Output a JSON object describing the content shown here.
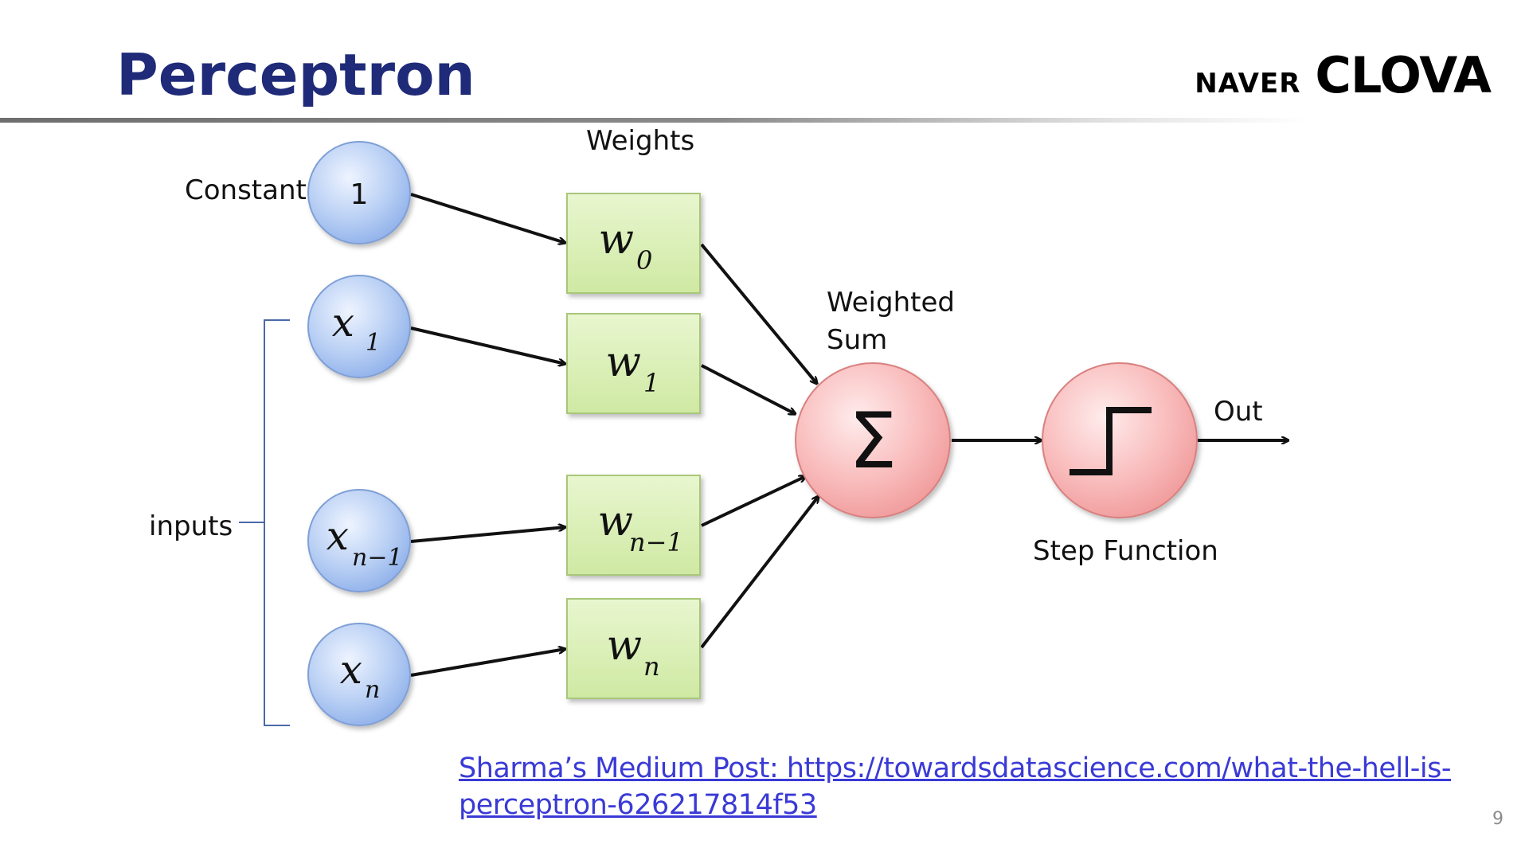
{
  "slide": {
    "title": "Perceptron",
    "brand": {
      "naver": "NAVER",
      "clova": "CLOVA"
    },
    "page_number": "9"
  },
  "diagram": {
    "weights_heading": "Weights",
    "constant_label": "Constant",
    "inputs_label": "inputs",
    "weighted_sum_label": [
      "Weighted",
      "Sum"
    ],
    "step_function_label": "Step Function",
    "out_label": "Out",
    "sum_symbol": "Σ",
    "input_nodes": [
      {
        "main": "1",
        "sub": ""
      },
      {
        "main": "x",
        "sub": "1"
      },
      {
        "main": "x",
        "sub": "n−1"
      },
      {
        "main": "x",
        "sub": "n"
      }
    ],
    "weight_boxes": [
      {
        "main": "w",
        "sub": "0"
      },
      {
        "main": "w",
        "sub": "1"
      },
      {
        "main": "w",
        "sub": "n−1"
      },
      {
        "main": "w",
        "sub": "n"
      }
    ],
    "colors": {
      "input_node": "#9dbcf0",
      "weight_box": "#d6edae",
      "sum_node": "#f5a3a3",
      "title": "#1f2a78",
      "link": "#3a3ad6"
    }
  },
  "reference": {
    "text": "Sharma’s Medium Post: https://towardsdatascience.com/what-the-hell-is-perceptron-626217814f53"
  }
}
